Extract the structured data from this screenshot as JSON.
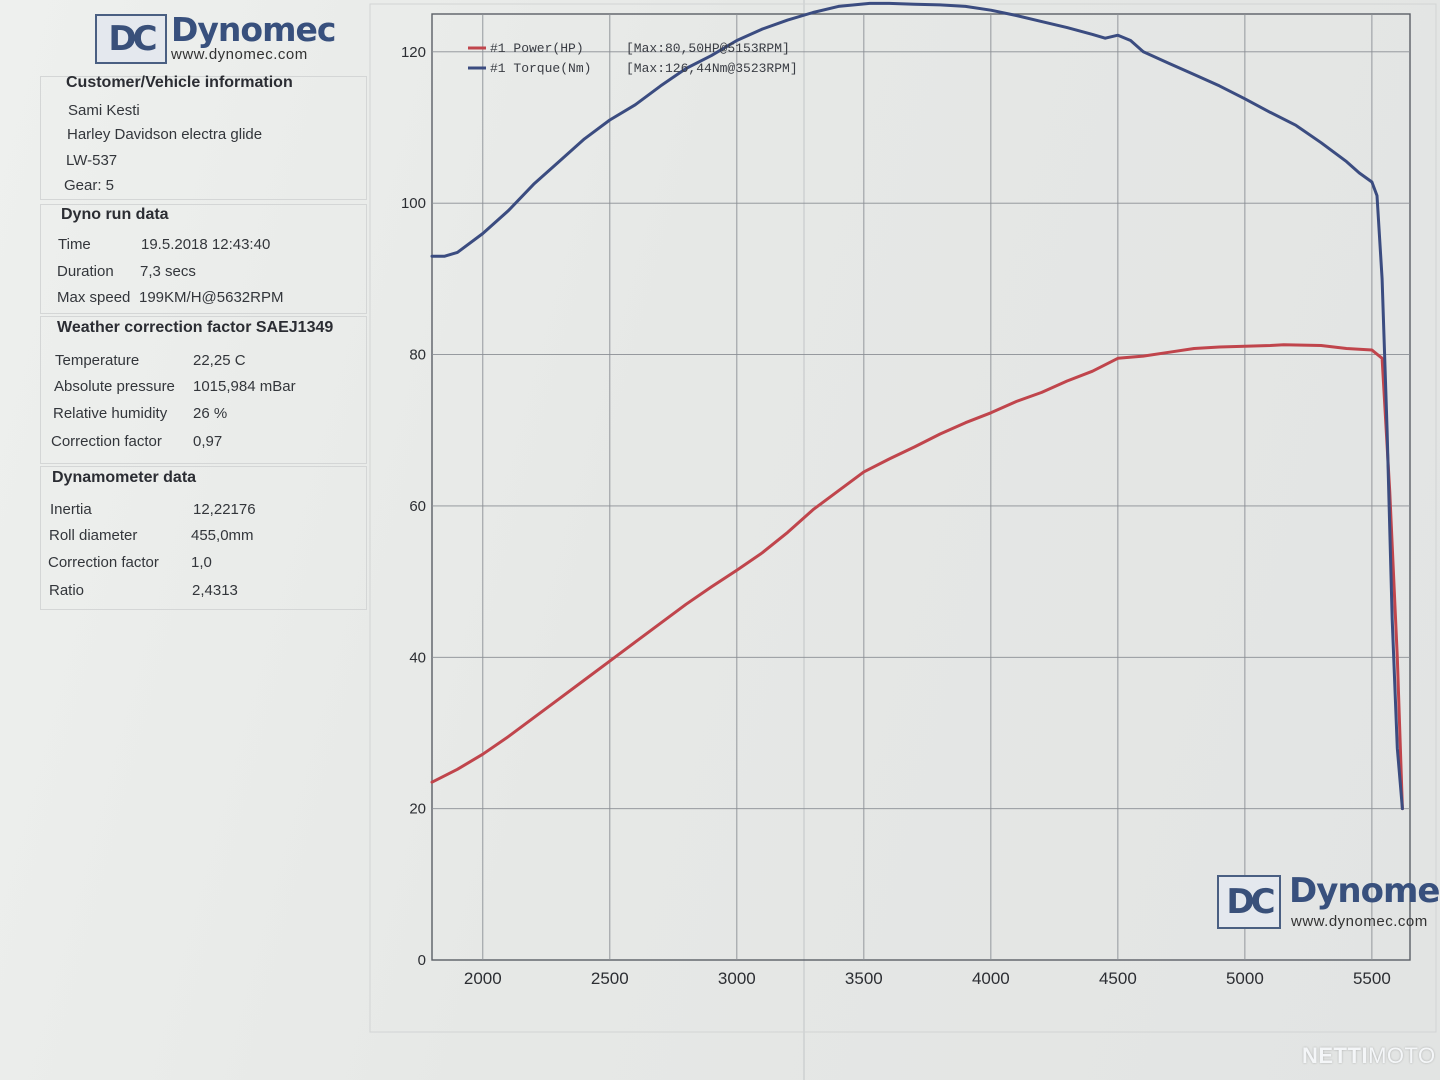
{
  "header": {
    "logo_text": "Dynomec",
    "logo_mark": "DC",
    "url": "www.dynomec.com"
  },
  "customer": {
    "title": "Customer/Vehicle information",
    "name": "Sami Kesti",
    "vehicle": "Harley Davidson electra glide",
    "plate": "LW-537",
    "gear": "Gear: 5"
  },
  "run": {
    "title": "Dyno run data",
    "rows": [
      {
        "label": "Time",
        "value": "19.5.2018 12:43:40"
      },
      {
        "label": "Duration",
        "value": "7,3 secs"
      },
      {
        "label": "Max speed",
        "value": "199KM/H@5632RPM"
      }
    ]
  },
  "weather": {
    "title": "Weather correction factor SAEJ1349",
    "rows": [
      {
        "label": "Temperature",
        "value": "22,25 C"
      },
      {
        "label": "Absolute pressure",
        "value": "1015,984 mBar"
      },
      {
        "label": "Relative humidity",
        "value": "26 %"
      },
      {
        "label": "Correction factor",
        "value": "0,97"
      }
    ]
  },
  "dyno": {
    "title": "Dynamometer data",
    "rows": [
      {
        "label": "Inertia",
        "value": "12,22176"
      },
      {
        "label": "Roll diameter",
        "value": "455,0mm"
      },
      {
        "label": "Correction factor",
        "value": "1,0"
      },
      {
        "label": "Ratio",
        "value": "2,4313"
      }
    ]
  },
  "chart_data": {
    "type": "line",
    "title": "",
    "xlabel": "",
    "ylabel": "",
    "xlim": [
      1800,
      5650
    ],
    "ylim": [
      0,
      125
    ],
    "x_ticks": [
      2000,
      2500,
      3000,
      3500,
      4000,
      4500,
      5000,
      5500
    ],
    "y_ticks": [
      0,
      20,
      40,
      60,
      80,
      100,
      120
    ],
    "grid": true,
    "legend_position": "top-left",
    "series": [
      {
        "name": "#1 Power(HP)",
        "legend_text": "#1 Power(HP)",
        "max_text": "[Max:80,50HP@5153RPM]",
        "color": "#c0454c",
        "points": [
          [
            1800,
            23.5
          ],
          [
            1900,
            25.2
          ],
          [
            2000,
            27.2
          ],
          [
            2100,
            29.5
          ],
          [
            2200,
            32.0
          ],
          [
            2300,
            34.5
          ],
          [
            2400,
            37.0
          ],
          [
            2500,
            39.5
          ],
          [
            2600,
            42.0
          ],
          [
            2700,
            44.5
          ],
          [
            2800,
            47.0
          ],
          [
            2900,
            49.3
          ],
          [
            3000,
            51.5
          ],
          [
            3100,
            53.8
          ],
          [
            3200,
            56.5
          ],
          [
            3300,
            59.5
          ],
          [
            3400,
            62.0
          ],
          [
            3500,
            64.5
          ],
          [
            3600,
            66.2
          ],
          [
            3700,
            67.8
          ],
          [
            3800,
            69.5
          ],
          [
            3900,
            71.0
          ],
          [
            4000,
            72.3
          ],
          [
            4100,
            73.8
          ],
          [
            4200,
            75.0
          ],
          [
            4300,
            76.5
          ],
          [
            4400,
            77.8
          ],
          [
            4500,
            79.5
          ],
          [
            4600,
            79.8
          ],
          [
            4700,
            80.3
          ],
          [
            4800,
            80.8
          ],
          [
            4900,
            81.0
          ],
          [
            5000,
            81.1
          ],
          [
            5100,
            81.2
          ],
          [
            5153,
            81.3
          ],
          [
            5300,
            81.2
          ],
          [
            5400,
            80.8
          ],
          [
            5500,
            80.6
          ],
          [
            5540,
            79.5
          ],
          [
            5570,
            62.0
          ],
          [
            5600,
            40.0
          ],
          [
            5620,
            20.0
          ]
        ]
      },
      {
        "name": "#1 Torque(Nm)",
        "legend_text": "#1 Torque(Nm)",
        "max_text": "[Max:126,44Nm@3523RPM]",
        "color": "#3b4c80",
        "points": [
          [
            1800,
            93.0
          ],
          [
            1850,
            93.0
          ],
          [
            1900,
            93.5
          ],
          [
            2000,
            96.0
          ],
          [
            2100,
            99.0
          ],
          [
            2200,
            102.5
          ],
          [
            2300,
            105.5
          ],
          [
            2400,
            108.5
          ],
          [
            2500,
            111.0
          ],
          [
            2600,
            113.0
          ],
          [
            2700,
            115.5
          ],
          [
            2800,
            117.8
          ],
          [
            2900,
            119.5
          ],
          [
            3000,
            121.5
          ],
          [
            3100,
            123.0
          ],
          [
            3200,
            124.2
          ],
          [
            3300,
            125.2
          ],
          [
            3400,
            126.0
          ],
          [
            3523,
            126.4
          ],
          [
            3600,
            126.4
          ],
          [
            3700,
            126.3
          ],
          [
            3800,
            126.2
          ],
          [
            3900,
            126.0
          ],
          [
            4000,
            125.5
          ],
          [
            4100,
            124.8
          ],
          [
            4200,
            124.0
          ],
          [
            4300,
            123.2
          ],
          [
            4400,
            122.3
          ],
          [
            4450,
            121.8
          ],
          [
            4500,
            122.2
          ],
          [
            4550,
            121.5
          ],
          [
            4600,
            120.0
          ],
          [
            4700,
            118.5
          ],
          [
            4800,
            117.0
          ],
          [
            4900,
            115.5
          ],
          [
            5000,
            113.8
          ],
          [
            5100,
            112.0
          ],
          [
            5200,
            110.3
          ],
          [
            5300,
            108.0
          ],
          [
            5400,
            105.5
          ],
          [
            5450,
            104.0
          ],
          [
            5500,
            102.8
          ],
          [
            5520,
            101.0
          ],
          [
            5540,
            90.0
          ],
          [
            5560,
            70.0
          ],
          [
            5580,
            45.0
          ],
          [
            5600,
            28.0
          ],
          [
            5620,
            20.0
          ]
        ]
      }
    ]
  },
  "chart_logo": {
    "logo_text": "Dynomec",
    "logo_mark": "DC",
    "url": "www.dynomec.com"
  },
  "watermark": {
    "bold": "NETTI",
    "light": "MOTO"
  }
}
